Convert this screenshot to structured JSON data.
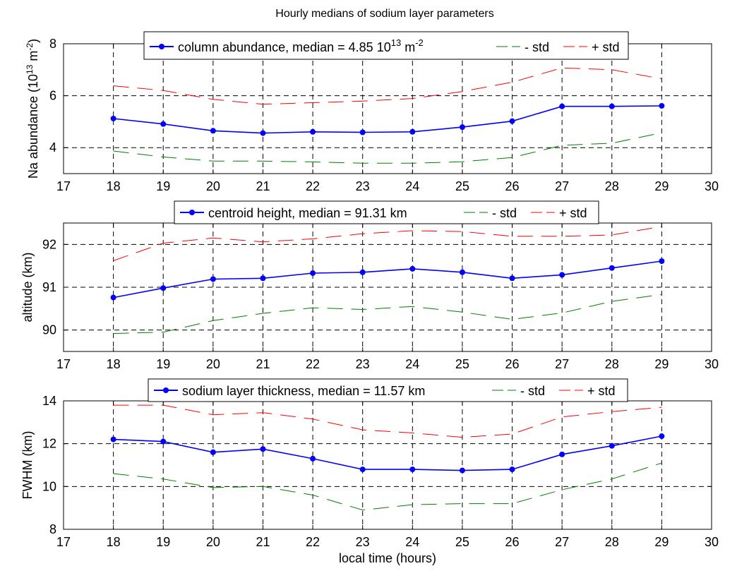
{
  "figure": {
    "title": "Hourly medians of sodium layer parameters"
  },
  "colors": {
    "median": "#0000ff",
    "minus_std": "#007f00",
    "plus_std": "#ff0000",
    "grid": "#000000",
    "axis": "#000000"
  },
  "chart_data": [
    {
      "type": "line",
      "title": "",
      "xlabel": "",
      "ylabel": "Na abundance (10^13 m^-2)",
      "xlim": [
        17,
        30
      ],
      "ylim": [
        3,
        8
      ],
      "xticks": [
        17,
        18,
        19,
        20,
        21,
        22,
        23,
        24,
        25,
        26,
        27,
        28,
        29,
        30
      ],
      "yticks": [
        4,
        6,
        8
      ],
      "grid": "dashed",
      "legend": {
        "position": "top",
        "entries": [
          "column abundance, median = 4.85 10^13 m^-2",
          "- std",
          "+ std"
        ]
      },
      "x": [
        18,
        19,
        20,
        21,
        22,
        23,
        24,
        25,
        26,
        27,
        28,
        29
      ],
      "series": [
        {
          "name": "column abundance, median = 4.85 10^13 m^-2",
          "style": "solid-marker",
          "values": [
            5.12,
            4.91,
            4.65,
            4.56,
            4.61,
            4.59,
            4.61,
            4.79,
            5.02,
            5.59,
            5.59,
            5.61
          ]
        },
        {
          "name": "- std",
          "style": "dashed",
          "values": [
            3.87,
            3.64,
            3.48,
            3.48,
            3.45,
            3.4,
            3.4,
            3.46,
            3.62,
            4.09,
            4.17,
            4.57
          ]
        },
        {
          "name": "+ std",
          "style": "dashed",
          "values": [
            6.38,
            6.2,
            5.86,
            5.67,
            5.73,
            5.79,
            5.89,
            6.16,
            6.52,
            7.07,
            7.0,
            6.65
          ]
        }
      ]
    },
    {
      "type": "line",
      "title": "",
      "xlabel": "",
      "ylabel": "altitude (km)",
      "xlim": [
        17,
        30
      ],
      "ylim": [
        89.5,
        92.5
      ],
      "xticks": [
        17,
        18,
        19,
        20,
        21,
        22,
        23,
        24,
        25,
        26,
        27,
        28,
        29,
        30
      ],
      "yticks": [
        90,
        91,
        92
      ],
      "grid": "dashed",
      "legend": {
        "position": "top",
        "entries": [
          "centroid height, median = 91.31 km",
          "- std",
          "+ std"
        ]
      },
      "x": [
        18,
        19,
        20,
        21,
        22,
        23,
        24,
        25,
        26,
        27,
        28,
        29
      ],
      "series": [
        {
          "name": "centroid height, median = 91.31 km",
          "style": "solid-marker",
          "values": [
            90.76,
            90.98,
            91.19,
            91.21,
            91.33,
            91.35,
            91.43,
            91.35,
            91.21,
            91.29,
            91.45,
            91.61
          ]
        },
        {
          "name": "- std",
          "style": "dashed",
          "values": [
            89.92,
            89.95,
            90.22,
            90.39,
            90.52,
            90.48,
            90.55,
            90.42,
            90.25,
            90.4,
            90.67,
            90.83
          ]
        },
        {
          "name": "+ std",
          "style": "dashed",
          "values": [
            91.62,
            92.03,
            92.15,
            92.06,
            92.13,
            92.25,
            92.32,
            92.3,
            92.19,
            92.19,
            92.22,
            92.42
          ]
        }
      ]
    },
    {
      "type": "line",
      "title": "",
      "xlabel": "local time (hours)",
      "ylabel": "FWHM (km)",
      "xlim": [
        17,
        30
      ],
      "ylim": [
        8,
        14
      ],
      "xticks": [
        17,
        18,
        19,
        20,
        21,
        22,
        23,
        24,
        25,
        26,
        27,
        28,
        29,
        30
      ],
      "yticks": [
        8,
        10,
        12,
        14
      ],
      "grid": "dashed",
      "legend": {
        "position": "top",
        "entries": [
          "sodium layer thickness, median = 11.57 km",
          "- std",
          "+ std"
        ]
      },
      "x": [
        18,
        19,
        20,
        21,
        22,
        23,
        24,
        25,
        26,
        27,
        28,
        29
      ],
      "series": [
        {
          "name": "sodium layer thickness, median = 11.57 km",
          "style": "solid-marker",
          "values": [
            12.2,
            12.1,
            11.6,
            11.75,
            11.3,
            10.8,
            10.8,
            10.75,
            10.8,
            11.5,
            11.9,
            12.35
          ]
        },
        {
          "name": "- std",
          "style": "dashed",
          "values": [
            10.6,
            10.35,
            9.95,
            10.0,
            9.6,
            8.9,
            9.15,
            9.2,
            9.2,
            9.85,
            10.35,
            11.1
          ]
        },
        {
          "name": "+ std",
          "style": "dashed",
          "values": [
            13.8,
            13.8,
            13.35,
            13.45,
            13.15,
            12.65,
            12.5,
            12.3,
            12.45,
            13.25,
            13.5,
            13.7
          ]
        }
      ]
    }
  ]
}
